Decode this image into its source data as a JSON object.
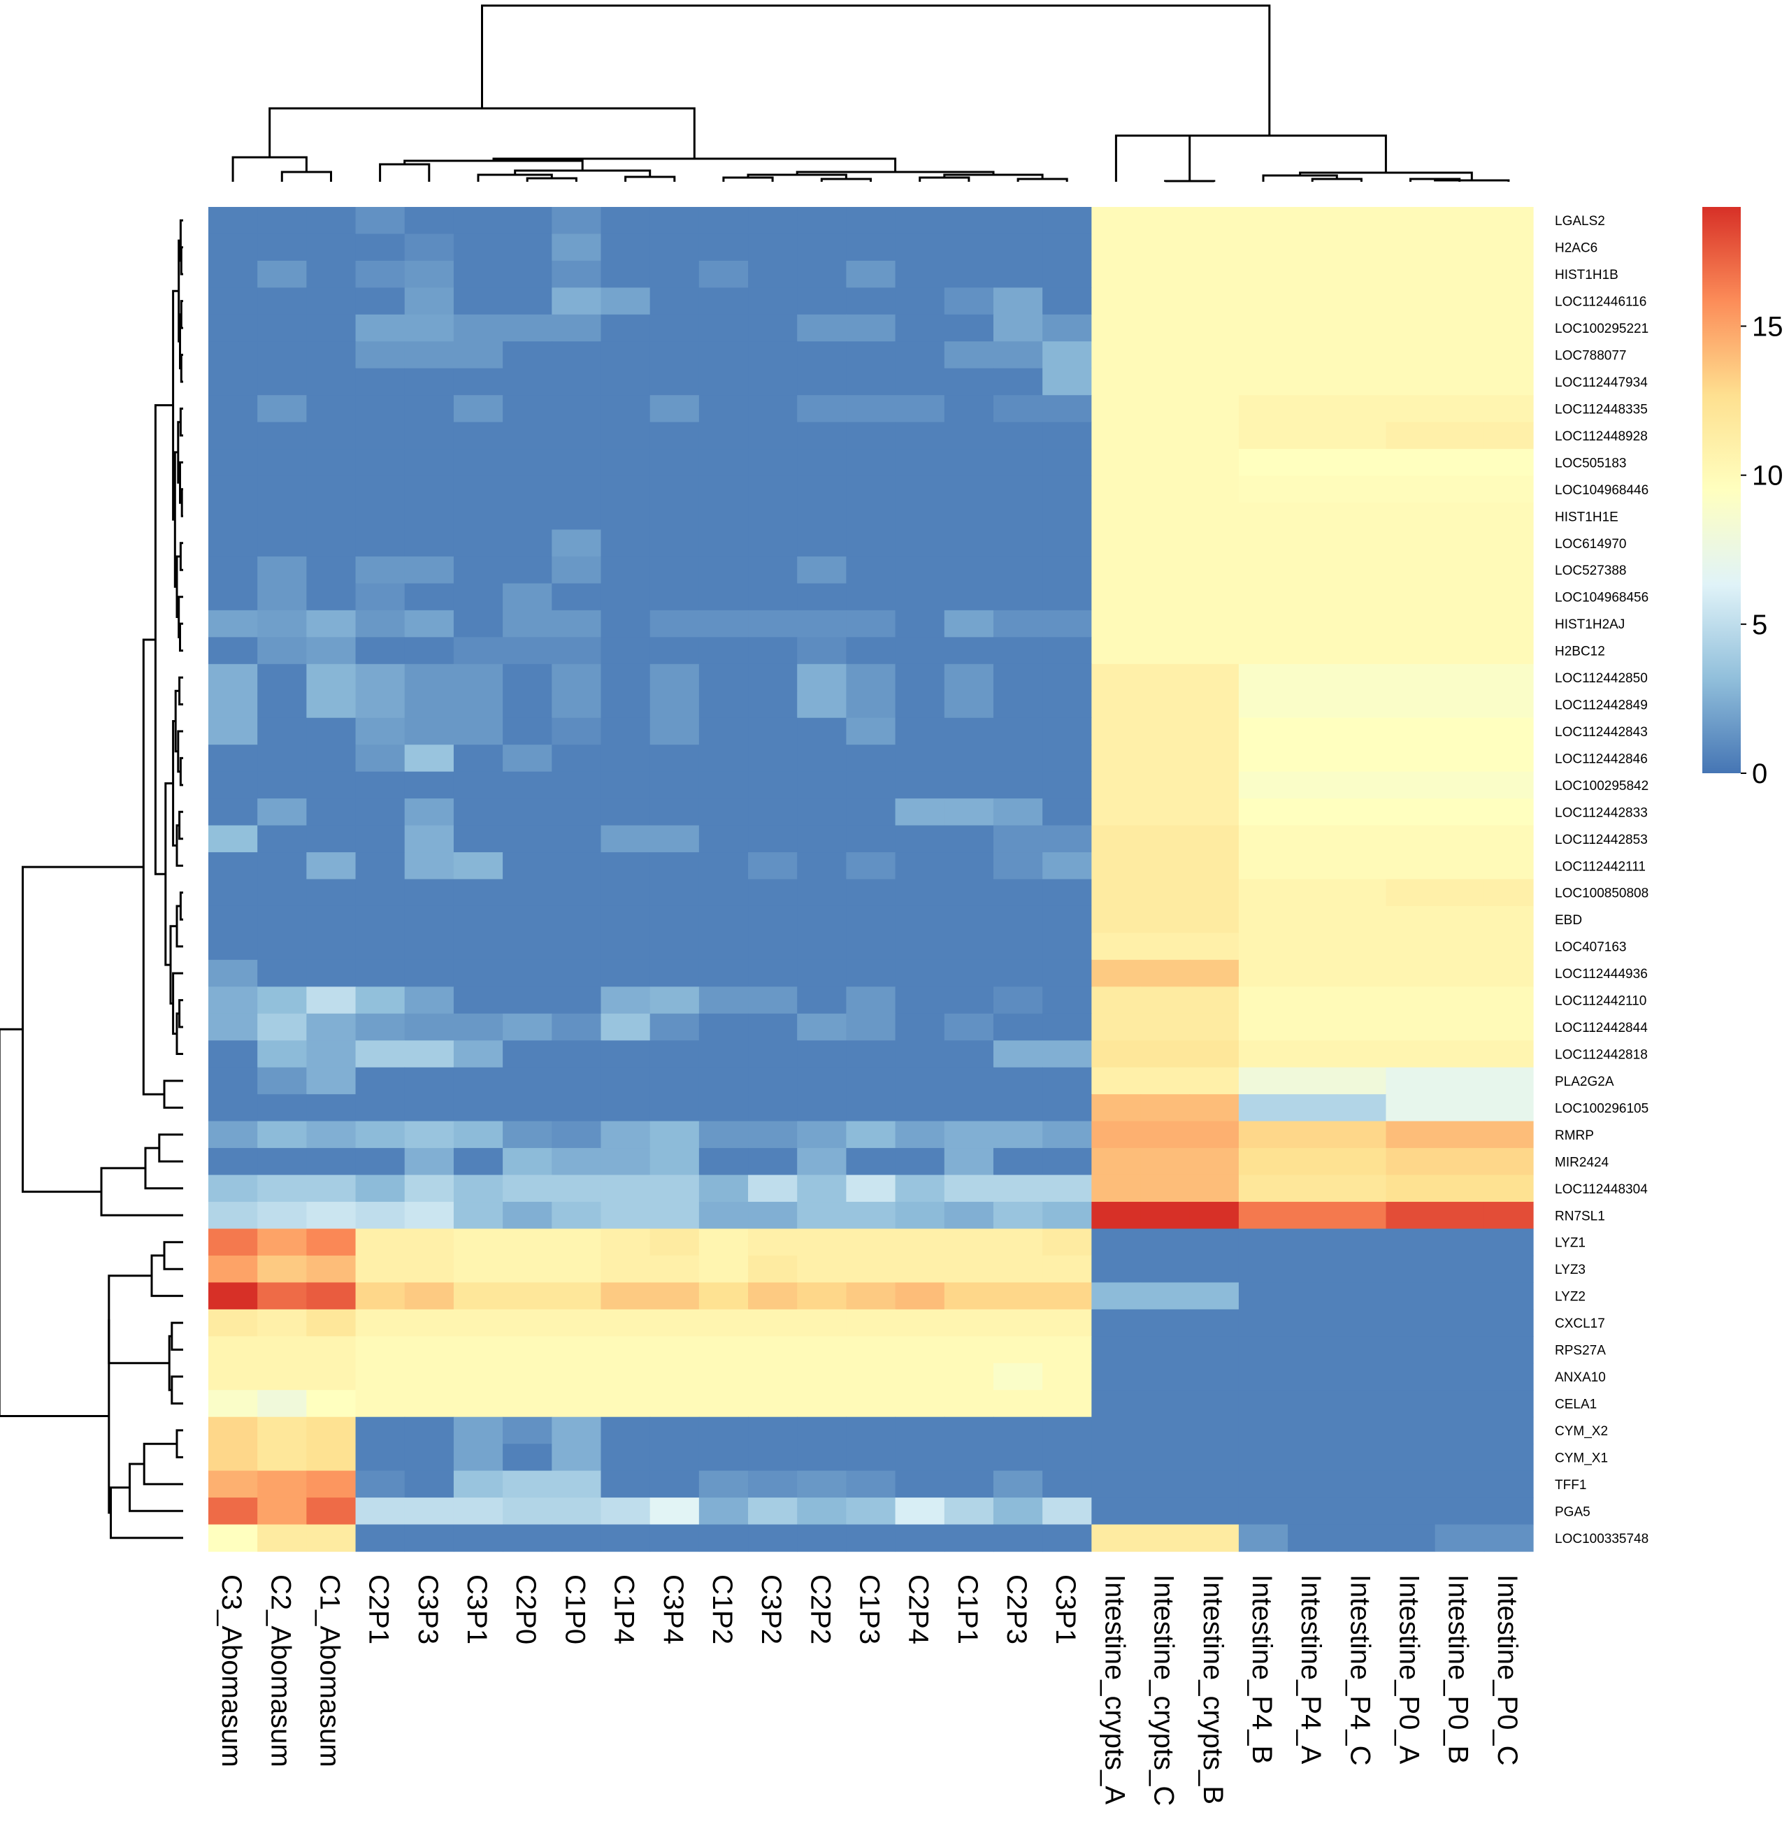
{
  "chart_data": {
    "type": "heatmap",
    "title": "",
    "legend_position": "top-right",
    "color_scale": {
      "min": 0,
      "max": 19,
      "ticks": [
        0,
        5,
        10,
        15
      ],
      "colors": [
        "#4575b4",
        "#91bfdb",
        "#e0f3f8",
        "#ffffbf",
        "#fee090",
        "#fc8d59",
        "#d73027"
      ]
    },
    "columns": [
      "C3_Abomasum",
      "C2_Abomasum",
      "C1_Abomasum",
      "C2P1",
      "C3P3",
      "C3P1",
      "C2P0",
      "C1P0",
      "C1P4",
      "C3P4",
      "C1P2",
      "C3P2",
      "C2P2",
      "C1P3",
      "C2P4",
      "C1P1",
      "C2P3",
      "C3P1",
      "Intestine_crypts_A",
      "Intestine_crypts_C",
      "Intestine_crypts_B",
      "Intestine_P4_B",
      "Intestine_P4_A",
      "Intestine_P4_C",
      "Intestine_P0_A",
      "Intestine_P0_B",
      "Intestine_P0_C"
    ],
    "rows": [
      "LGALS2",
      "H2AC6",
      "HIST1H1B",
      "LOC112446116",
      "LOC100295221",
      "LOC788077",
      "LOC112447934",
      "LOC112448335",
      "LOC112448928",
      "LOC505183",
      "LOC104968446",
      "HIST1H1E",
      "LOC614970",
      "LOC527388",
      "LOC104968456",
      "HIST1H2AJ",
      "H2BC12",
      "LOC112442850",
      "LOC112442849",
      "LOC112442843",
      "LOC112442846",
      "LOC100295842",
      "LOC112442833",
      "LOC112442853",
      "LOC112442111",
      "LOC100850808",
      "EBD",
      "LOC407163",
      "LOC112444936",
      "LOC112442110",
      "LOC112442844",
      "LOC112442818",
      "PLA2G2A",
      "LOC100296105",
      "RMRP",
      "MIR2424",
      "LOC112448304",
      "RN7SL1",
      "LYZ1",
      "LYZ3",
      "LYZ2",
      "CXCL17",
      "RPS27A",
      "ANXA10",
      "CELA1",
      "CYM_X2",
      "CYM_X1",
      "TFF1",
      "PGA5",
      "LOC100335748"
    ],
    "values": [
      [
        0.5,
        0.5,
        0.5,
        1.2,
        0.5,
        0.5,
        0.5,
        1.2,
        0.5,
        0.5,
        0.5,
        0.5,
        0.5,
        0.5,
        0.5,
        0.5,
        0.5,
        0.5,
        10,
        10,
        10,
        10,
        10,
        10,
        10,
        10,
        10
      ],
      [
        0.5,
        0.5,
        0.5,
        0.5,
        1,
        0.5,
        0.5,
        1.8,
        0.5,
        0.5,
        0.5,
        0.5,
        0.5,
        0.5,
        0.5,
        0.5,
        0.5,
        0.5,
        10,
        10,
        10,
        10,
        10,
        10,
        10,
        10,
        10
      ],
      [
        0.5,
        1.5,
        0.5,
        1.2,
        1.5,
        0.5,
        0.5,
        1.2,
        0.5,
        0.5,
        1.2,
        0.5,
        0.5,
        1.5,
        0.5,
        0.5,
        0.5,
        0.5,
        10,
        10,
        10,
        10,
        10,
        10,
        10,
        10,
        10
      ],
      [
        0.5,
        0.5,
        0.5,
        0.5,
        1.8,
        0.5,
        0.5,
        2.5,
        2,
        0.5,
        0.5,
        0.5,
        0.5,
        0.5,
        0.5,
        1.2,
        2.2,
        0.5,
        10,
        10,
        10,
        10,
        10,
        10,
        10,
        10,
        10
      ],
      [
        0.5,
        0.5,
        0.5,
        2,
        2,
        1.5,
        1.5,
        1.5,
        0.5,
        0.5,
        0.5,
        0.5,
        1.5,
        1.5,
        0.5,
        0.5,
        2.2,
        1.5,
        10,
        10,
        10,
        10,
        10,
        10,
        10,
        10,
        10
      ],
      [
        0.5,
        0.5,
        0.5,
        1.5,
        1.5,
        1.5,
        0.5,
        0.5,
        0.5,
        0.5,
        0.5,
        0.5,
        0.5,
        0.5,
        0.5,
        1.5,
        1.5,
        2.8,
        10,
        10,
        10,
        10,
        10,
        10,
        10,
        10,
        10
      ],
      [
        0.5,
        0.5,
        0.5,
        0.5,
        0.5,
        0.5,
        0.5,
        0.5,
        0.5,
        0.5,
        0.5,
        0.5,
        0.5,
        0.5,
        0.5,
        0.5,
        0.5,
        2.8,
        10,
        10,
        10,
        10,
        10,
        10,
        10,
        10,
        10
      ],
      [
        0.5,
        1.5,
        0.5,
        0.5,
        0.5,
        1.5,
        0.5,
        0.5,
        0.5,
        1.5,
        0.5,
        0.5,
        1.2,
        1.2,
        1.2,
        0.5,
        1,
        1,
        10,
        10,
        10,
        10.5,
        10.5,
        10.5,
        10.5,
        10.5,
        10.5
      ],
      [
        0.5,
        0.5,
        0.5,
        0.5,
        0.5,
        0.5,
        0.5,
        0.5,
        0.5,
        0.5,
        0.5,
        0.5,
        0.5,
        0.5,
        0.5,
        0.5,
        0.5,
        0.5,
        10,
        10,
        10,
        10.5,
        10.5,
        10.5,
        11,
        11,
        11
      ],
      [
        0.5,
        0.5,
        0.5,
        0.5,
        0.5,
        0.5,
        0.5,
        0.5,
        0.5,
        0.5,
        0.5,
        0.5,
        0.5,
        0.5,
        0.5,
        0.5,
        0.5,
        0.5,
        10,
        10,
        10,
        9.5,
        9.5,
        9.5,
        9.5,
        9.5,
        9.5
      ],
      [
        0.5,
        0.5,
        0.5,
        0.5,
        0.5,
        0.5,
        0.5,
        0.5,
        0.5,
        0.5,
        0.5,
        0.5,
        0.5,
        0.5,
        0.5,
        0.5,
        0.5,
        0.5,
        10,
        10,
        10,
        9.8,
        9.8,
        9.8,
        9.8,
        9.8,
        9.8
      ],
      [
        0.5,
        0.5,
        0.5,
        0.5,
        0.5,
        0.5,
        0.5,
        0.5,
        0.5,
        0.5,
        0.5,
        0.5,
        0.5,
        0.5,
        0.5,
        0.5,
        0.5,
        0.5,
        10,
        10,
        10,
        10,
        10,
        10,
        10,
        10,
        10
      ],
      [
        0.5,
        0.5,
        0.5,
        0.5,
        0.5,
        0.5,
        0.5,
        1.8,
        0.5,
        0.5,
        0.5,
        0.5,
        0.5,
        0.5,
        0.5,
        0.5,
        0.5,
        0.5,
        10,
        10,
        10,
        10,
        10,
        10,
        10,
        10,
        10
      ],
      [
        0.5,
        1.5,
        0.5,
        1.5,
        1.5,
        0.5,
        0.5,
        1.5,
        0.5,
        0.5,
        0.5,
        0.5,
        1.5,
        0.5,
        0.5,
        0.5,
        0.5,
        0.5,
        10,
        10,
        10,
        10,
        10,
        10,
        10,
        10,
        10
      ],
      [
        0.5,
        1.5,
        0.5,
        1.2,
        0.5,
        0.5,
        1.5,
        0.5,
        0.5,
        0.5,
        0.5,
        0.5,
        0.5,
        0.5,
        0.5,
        0.5,
        0.5,
        0.5,
        10,
        10,
        10,
        10,
        10,
        10,
        10,
        10,
        10
      ],
      [
        2,
        1.8,
        2.5,
        1.5,
        2,
        0.5,
        1.5,
        1.5,
        0.5,
        1.2,
        1.2,
        1.2,
        1.2,
        1.2,
        0.5,
        2,
        1.2,
        1.2,
        10,
        10,
        10,
        10,
        10,
        10,
        10,
        10,
        10
      ],
      [
        0.5,
        1.5,
        1.8,
        0.5,
        0.5,
        1,
        1,
        1,
        0.5,
        0.5,
        0.5,
        0.5,
        1,
        0.5,
        0.5,
        0.5,
        0.5,
        0.5,
        10,
        10,
        10,
        10,
        10,
        10,
        10,
        10,
        10
      ],
      [
        2.5,
        0.5,
        2.8,
        2.2,
        1.5,
        1.5,
        0.5,
        1.5,
        0.5,
        1.5,
        0.5,
        0.5,
        2.5,
        1.5,
        0.5,
        1.5,
        0.5,
        0.5,
        11,
        11,
        11,
        9,
        9,
        9,
        9,
        9,
        9
      ],
      [
        2.5,
        0.5,
        2.8,
        2.2,
        1.5,
        1.5,
        0.5,
        1.5,
        0.5,
        1.5,
        0.5,
        0.5,
        2.5,
        1.5,
        0.5,
        1.5,
        0.5,
        0.5,
        11,
        11,
        11,
        9,
        9,
        9,
        9,
        9,
        9
      ],
      [
        2.5,
        0.5,
        0.5,
        1.8,
        1.5,
        1.5,
        0.5,
        1,
        0.5,
        1.5,
        0.5,
        0.5,
        0.5,
        1.8,
        0.5,
        0.5,
        0.5,
        0.5,
        11,
        11,
        11,
        9.5,
        9.5,
        9.5,
        9.5,
        9.5,
        9.5
      ],
      [
        0.5,
        0.5,
        0.5,
        1.5,
        3.5,
        0.5,
        1.5,
        0.5,
        0.5,
        0.5,
        0.5,
        0.5,
        0.5,
        0.5,
        0.5,
        0.5,
        0.5,
        0.5,
        11,
        11,
        11,
        9.5,
        9.5,
        9.5,
        9.5,
        9.5,
        9.5
      ],
      [
        0.5,
        0.5,
        0.5,
        0.5,
        0.5,
        0.5,
        0.5,
        0.5,
        0.5,
        0.5,
        0.5,
        0.5,
        0.5,
        0.5,
        0.5,
        0.5,
        0.5,
        0.5,
        11,
        11,
        11,
        9,
        9,
        9,
        9,
        9,
        9
      ],
      [
        0.5,
        2,
        0.5,
        0.5,
        2,
        0.5,
        0.5,
        0.5,
        0.5,
        0.5,
        0.5,
        0.5,
        0.5,
        0.5,
        2.5,
        2.5,
        2,
        0.5,
        11,
        11,
        11,
        9.5,
        9.5,
        9.5,
        9.5,
        9.5,
        9.5
      ],
      [
        3.2,
        0.5,
        0.5,
        0.5,
        2.5,
        0.5,
        0.5,
        0.5,
        1.8,
        1.8,
        0.5,
        0.5,
        0.5,
        0.5,
        0.5,
        0.5,
        1.2,
        1.2,
        11.5,
        11.5,
        11.5,
        10,
        10,
        10,
        10,
        10,
        10
      ],
      [
        0.5,
        0.5,
        2.5,
        0.5,
        2.5,
        2.8,
        0.5,
        0.5,
        0.5,
        0.5,
        0.5,
        1.2,
        0.5,
        1.2,
        0.5,
        0.5,
        1.2,
        2,
        11.5,
        11.5,
        11.5,
        10,
        10,
        10,
        10,
        10,
        10
      ],
      [
        0.5,
        0.5,
        0.5,
        0.5,
        0.5,
        0.5,
        0.5,
        0.5,
        0.5,
        0.5,
        0.5,
        0.5,
        0.5,
        0.5,
        0.5,
        0.5,
        0.5,
        0.5,
        11.5,
        11.5,
        11.5,
        10.5,
        10.5,
        10.5,
        11,
        11,
        11
      ],
      [
        0.5,
        0.5,
        0.5,
        0.5,
        0.5,
        0.5,
        0.5,
        0.5,
        0.5,
        0.5,
        0.5,
        0.5,
        0.5,
        0.5,
        0.5,
        0.5,
        0.5,
        0.5,
        11.5,
        11.5,
        11.5,
        10.5,
        10.5,
        10.5,
        10.5,
        10.5,
        10.5
      ],
      [
        0.5,
        0.5,
        0.5,
        0.5,
        0.5,
        0.5,
        0.5,
        0.5,
        0.5,
        0.5,
        0.5,
        0.5,
        0.5,
        0.5,
        0.5,
        0.5,
        0.5,
        0.5,
        11,
        11,
        11,
        10.5,
        10.5,
        10.5,
        10.5,
        10.5,
        10.5
      ],
      [
        1.8,
        0.5,
        0.5,
        0.5,
        0.5,
        0.5,
        0.5,
        0.5,
        0.5,
        0.5,
        0.5,
        0.5,
        0.5,
        0.5,
        0.5,
        0.5,
        0.5,
        0.5,
        13.5,
        13.5,
        13.5,
        10.5,
        10.5,
        10.5,
        10.5,
        10.5,
        10.5
      ],
      [
        2.5,
        3.2,
        5,
        3.2,
        2,
        0.5,
        0.5,
        0.5,
        2.5,
        2.8,
        1.5,
        1.5,
        0.5,
        1.5,
        0.5,
        0.5,
        1,
        0.5,
        11.5,
        11.5,
        11.5,
        10,
        10,
        10,
        10,
        10,
        10
      ],
      [
        2.5,
        4,
        2.5,
        1.8,
        1.5,
        1.5,
        2,
        1.2,
        3.5,
        1.2,
        0.5,
        0.5,
        1.8,
        1.5,
        0.5,
        1.2,
        0.5,
        0.5,
        11.5,
        11.5,
        11.5,
        10,
        10,
        10,
        10,
        10,
        10
      ],
      [
        0.5,
        3,
        2.5,
        4,
        4,
        2.5,
        0.5,
        0.5,
        0.5,
        0.5,
        0.5,
        0.5,
        0.5,
        0.5,
        0.5,
        0.5,
        2.5,
        2.5,
        12,
        12,
        12,
        10.5,
        10.5,
        10.5,
        10.5,
        10.5,
        10.5
      ],
      [
        0.5,
        1.5,
        2.5,
        0.5,
        0.5,
        0.5,
        0.5,
        0.5,
        0.5,
        0.5,
        0.5,
        0.5,
        0.5,
        0.5,
        0.5,
        0.5,
        0.5,
        0.5,
        11,
        11,
        11,
        8,
        8,
        8,
        7,
        7,
        7
      ],
      [
        0.5,
        0.5,
        0.5,
        0.5,
        0.5,
        0.5,
        0.5,
        0.5,
        0.5,
        0.5,
        0.5,
        0.5,
        0.5,
        0.5,
        0.5,
        0.5,
        0.5,
        0.5,
        14,
        14,
        14,
        4.5,
        4.5,
        4.5,
        7,
        7,
        7
      ],
      [
        2,
        3,
        2.5,
        3,
        3.5,
        3,
        1.5,
        1.2,
        2.5,
        3,
        1.5,
        1.5,
        2,
        3,
        2,
        2.5,
        2.5,
        2,
        14.5,
        14.5,
        14.5,
        13,
        13,
        13,
        14,
        14,
        14
      ],
      [
        0.5,
        0.5,
        0.5,
        0.5,
        2.5,
        0.5,
        3,
        2.5,
        2.5,
        3,
        0.5,
        0.5,
        2.5,
        0.5,
        0.5,
        2.5,
        0.5,
        0.5,
        14,
        14,
        14,
        12.5,
        12.5,
        12.5,
        13,
        13,
        13
      ],
      [
        3.5,
        4,
        4,
        3,
        4.5,
        3.5,
        4,
        4,
        4,
        4,
        2.8,
        5,
        3.5,
        5.5,
        3.5,
        4.5,
        4.5,
        4.5,
        14,
        14,
        14,
        12,
        12,
        12,
        12.5,
        12.5,
        12.5
      ],
      [
        4.5,
        5,
        5.5,
        5,
        5.5,
        3.5,
        2.5,
        3.5,
        4,
        4,
        2.5,
        2.5,
        3.5,
        3.5,
        3,
        2.5,
        3.5,
        3,
        19,
        19,
        19,
        16.5,
        16.5,
        16.5,
        18,
        18,
        18
      ],
      [
        16.5,
        15,
        16,
        11,
        11,
        10.5,
        10.5,
        10.5,
        11,
        11.5,
        10.5,
        11,
        11,
        11,
        11,
        11,
        11,
        11.5,
        0.5,
        0.5,
        0.5,
        0.5,
        0.5,
        0.5,
        0.5,
        0.5,
        0.5
      ],
      [
        15,
        13.5,
        14,
        11,
        11,
        10.5,
        10.5,
        10.5,
        11,
        11,
        10.5,
        11.5,
        11,
        11,
        11,
        11,
        11,
        11,
        0.5,
        0.5,
        0.5,
        0.5,
        0.5,
        0.5,
        0.5,
        0.5,
        0.5
      ],
      [
        19,
        17,
        17.5,
        13,
        13.5,
        12,
        12,
        12,
        13.5,
        13.5,
        12.5,
        13.5,
        13,
        13.5,
        14,
        13,
        13,
        13,
        3,
        3,
        3,
        0.5,
        0.5,
        0.5,
        0.5,
        0.5,
        0.5
      ],
      [
        11.5,
        11,
        12,
        10.5,
        10.5,
        10.5,
        10.5,
        10.5,
        10.5,
        10.5,
        10.5,
        10.5,
        10.5,
        10.5,
        10.5,
        10.5,
        10.5,
        10.5,
        0.5,
        0.5,
        0.5,
        0.5,
        0.5,
        0.5,
        0.5,
        0.5,
        0.5
      ],
      [
        10.5,
        10.5,
        10.5,
        10,
        10,
        10,
        10,
        10,
        10,
        10,
        10,
        10,
        10,
        10,
        10,
        10,
        10,
        10,
        0.5,
        0.5,
        0.5,
        0.5,
        0.5,
        0.5,
        0.5,
        0.5,
        0.5
      ],
      [
        10.5,
        10.5,
        10.5,
        10,
        10,
        10,
        10,
        10,
        10,
        10,
        10,
        10,
        10,
        10,
        10,
        10,
        9,
        10,
        0.5,
        0.5,
        0.5,
        0.5,
        0.5,
        0.5,
        0.5,
        0.5,
        0.5
      ],
      [
        9,
        8,
        9.5,
        10,
        10,
        10,
        10,
        10,
        10,
        10,
        10,
        10,
        10,
        10,
        10,
        10,
        10,
        10,
        0.5,
        0.5,
        0.5,
        0.5,
        0.5,
        0.5,
        0.5,
        0.5,
        0.5
      ],
      [
        13,
        12,
        12.5,
        0.5,
        0.5,
        2,
        1.2,
        2.5,
        0.5,
        0.5,
        0.5,
        0.5,
        0.5,
        0.5,
        0.5,
        0.5,
        0.5,
        0.5,
        0.5,
        0.5,
        0.5,
        0.5,
        0.5,
        0.5,
        0.5,
        0.5,
        0.5
      ],
      [
        13,
        12,
        12.5,
        0.5,
        0.5,
        2,
        0.5,
        2.5,
        0.5,
        0.5,
        0.5,
        0.5,
        0.5,
        0.5,
        0.5,
        0.5,
        0.5,
        0.5,
        0.5,
        0.5,
        0.5,
        0.5,
        0.5,
        0.5,
        0.5,
        0.5,
        0.5
      ],
      [
        14.5,
        15,
        15.5,
        1,
        0.5,
        3.5,
        4,
        4,
        0.5,
        0.5,
        1.5,
        1.2,
        1.5,
        1.2,
        0.5,
        0.5,
        1.5,
        0.5,
        0.5,
        0.5,
        0.5,
        0.5,
        0.5,
        0.5,
        0.5,
        0.5,
        0.5
      ],
      [
        17,
        15,
        17,
        5,
        5,
        5,
        4.5,
        4.5,
        5,
        6.5,
        2.5,
        4,
        3,
        3.5,
        6,
        4.5,
        3,
        5,
        0.5,
        0.5,
        0.5,
        0.5,
        0.5,
        0.5,
        0.5,
        0.5,
        0.5
      ],
      [
        9.5,
        11.5,
        11.5,
        0.5,
        0.5,
        0.5,
        0.5,
        0.5,
        0.5,
        0.5,
        0.5,
        0.5,
        0.5,
        0.5,
        0.5,
        0.5,
        0.5,
        0.5,
        11.5,
        11.5,
        11.5,
        1.5,
        0.5,
        0.5,
        0.5,
        1.2,
        1.2
      ]
    ]
  }
}
